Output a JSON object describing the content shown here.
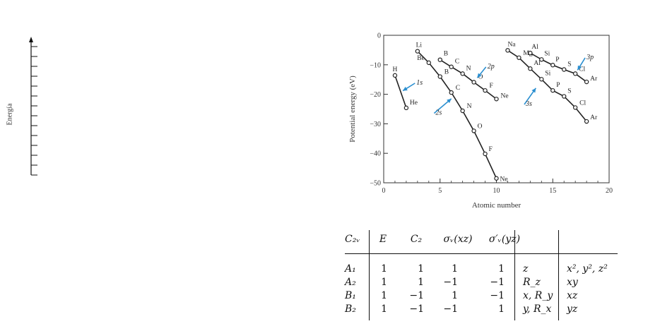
{
  "energy_axis": {
    "label": "Energía",
    "tick_count": 14
  },
  "chart_data": {
    "type": "line",
    "xlabel": "Atomic number",
    "ylabel": "Potential energy (eV)",
    "xlim": [
      0,
      20
    ],
    "ylim": [
      -50,
      0
    ],
    "xticks": [
      0,
      5,
      10,
      15,
      20
    ],
    "yticks": [
      0,
      -10,
      -20,
      -30,
      -40,
      -50
    ],
    "grid": false,
    "series": [
      {
        "name": "1s",
        "x": [
          1,
          2
        ],
        "y": [
          -13.6,
          -24.6
        ],
        "labels": [
          "H",
          "He"
        ]
      },
      {
        "name": "2s",
        "x": [
          3,
          4,
          5,
          6,
          7,
          8,
          9,
          10
        ],
        "y": [
          -5.4,
          -9.3,
          -14.0,
          -19.4,
          -25.6,
          -32.4,
          -40.2,
          -48.5
        ],
        "labels": [
          "Li",
          "Be",
          "B",
          "C",
          "N",
          "O",
          "F",
          "Ne"
        ]
      },
      {
        "name": "2p",
        "x": [
          5,
          6,
          7,
          8,
          9,
          10
        ],
        "y": [
          -8.3,
          -10.7,
          -13.0,
          -15.9,
          -18.7,
          -21.6
        ],
        "labels": [
          "B",
          "C",
          "N",
          "O",
          "F",
          "Ne"
        ]
      },
      {
        "name": "3s",
        "x": [
          11,
          12,
          13,
          14,
          15,
          16,
          17,
          18
        ],
        "y": [
          -5.1,
          -7.6,
          -11.3,
          -14.9,
          -18.7,
          -20.7,
          -24.5,
          -29.2
        ],
        "labels": [
          "Na",
          "Mg",
          "Al",
          "Si",
          "P",
          "S",
          "Cl",
          "Ar"
        ]
      },
      {
        "name": "3p",
        "x": [
          13,
          14,
          15,
          16,
          17,
          18
        ],
        "y": [
          -6.0,
          -8.2,
          -10.1,
          -11.6,
          -13.0,
          -15.8
        ],
        "labels": [
          "Al",
          "Si",
          "P",
          "S",
          "Cl",
          "Ar"
        ]
      }
    ]
  },
  "table": {
    "header": [
      "C₂ᵥ",
      "E",
      "C₂",
      "σᵥ(xz)",
      "σ′ᵥ(yz)",
      "",
      ""
    ],
    "rows": [
      {
        "irrep": "A₁",
        "chars": [
          "1",
          "1",
          "1",
          "1"
        ],
        "linear": "z",
        "quadratic": "x², y², z²"
      },
      {
        "irrep": "A₂",
        "chars": [
          "1",
          "1",
          "−1",
          "−1"
        ],
        "linear": "R_z",
        "quadratic": "xy"
      },
      {
        "irrep": "B₁",
        "chars": [
          "1",
          "−1",
          "1",
          "−1"
        ],
        "linear": "x, R_y",
        "quadratic": "xz"
      },
      {
        "irrep": "B₂",
        "chars": [
          "1",
          "−1",
          "−1",
          "1"
        ],
        "linear": "y, R_x",
        "quadratic": "yz"
      }
    ]
  }
}
